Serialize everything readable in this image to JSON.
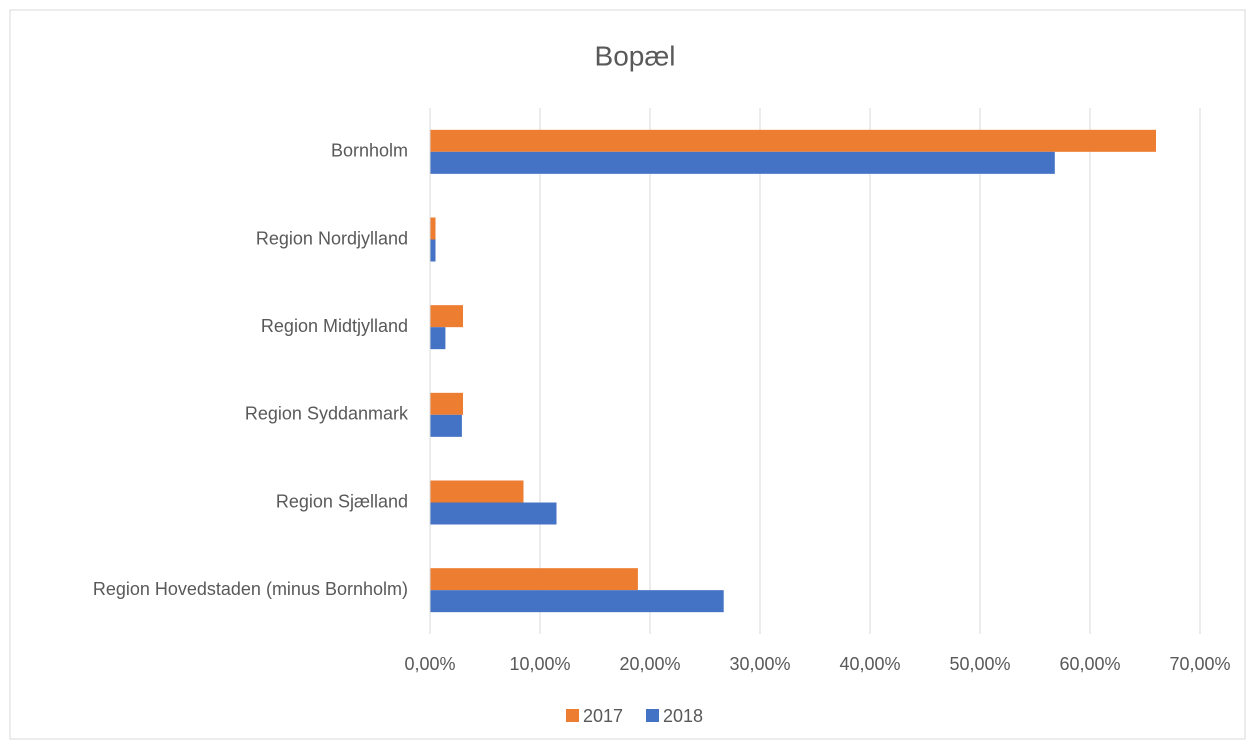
{
  "chart_data": {
    "type": "bar",
    "orientation": "horizontal",
    "title": "Bopæl",
    "categories": [
      "Bornholm",
      "Region Nordjylland",
      "Region Midtjylland",
      "Region Syddanmark",
      "Region Sjælland",
      "Region Hovedstaden (minus Bornholm)"
    ],
    "series": [
      {
        "name": "2017",
        "color": "#ed7d31",
        "values": [
          66,
          0.5,
          3,
          3,
          8.5,
          18.9
        ]
      },
      {
        "name": "2018",
        "color": "#4472c4",
        "values": [
          56.8,
          0.5,
          1.4,
          2.9,
          11.5,
          26.7
        ]
      }
    ],
    "xlim": [
      0,
      70
    ],
    "xticks": [
      {
        "value": 0,
        "label": "0,00%"
      },
      {
        "value": 10,
        "label": "10,00%"
      },
      {
        "value": 20,
        "label": "20,00%"
      },
      {
        "value": 30,
        "label": "30,00%"
      },
      {
        "value": 40,
        "label": "40,00%"
      },
      {
        "value": 50,
        "label": "50,00%"
      },
      {
        "value": 60,
        "label": "60,00%"
      },
      {
        "value": 70,
        "label": "70,00%"
      }
    ],
    "grid": true,
    "legend": "bottom"
  }
}
